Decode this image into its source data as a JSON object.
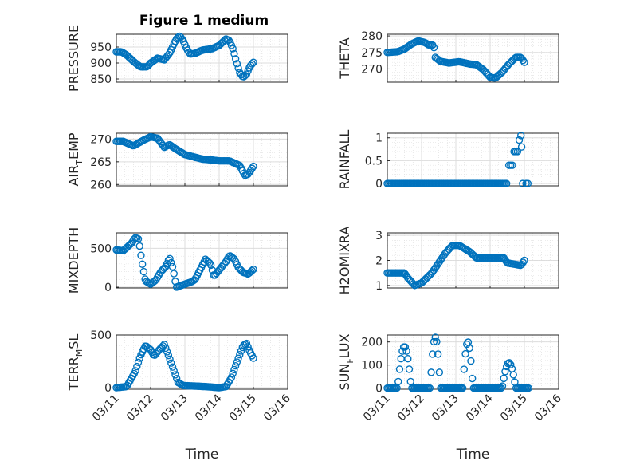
{
  "title": "Figure 1 medium",
  "x_axis_label": "Time",
  "x_tick_labels": [
    "03/11",
    "03/12",
    "03/13",
    "03/14",
    "03/15",
    "03/16"
  ],
  "marker_color": "#0072BD",
  "chart_data": [
    {
      "type": "scatter",
      "ylabel_main": "PRESSURE",
      "ylabel_sub": "",
      "ylim": [
        840,
        990
      ],
      "yticks": [
        850,
        900,
        950
      ],
      "xlim": [
        "03/11",
        "03/16"
      ],
      "grid": "on",
      "keypoints": [
        [
          0,
          935
        ],
        [
          0.15,
          935
        ],
        [
          0.3,
          925
        ],
        [
          0.5,
          905
        ],
        [
          0.7,
          888
        ],
        [
          0.9,
          888
        ],
        [
          1.0,
          900
        ],
        [
          1.2,
          915
        ],
        [
          1.4,
          910
        ],
        [
          1.55,
          930
        ],
        [
          1.75,
          975
        ],
        [
          1.85,
          985
        ],
        [
          1.95,
          970
        ],
        [
          2.05,
          945
        ],
        [
          2.15,
          928
        ],
        [
          2.3,
          930
        ],
        [
          2.5,
          940
        ],
        [
          2.8,
          945
        ],
        [
          3.0,
          955
        ],
        [
          3.2,
          975
        ],
        [
          3.3,
          970
        ],
        [
          3.4,
          945
        ],
        [
          3.5,
          905
        ],
        [
          3.6,
          870
        ],
        [
          3.7,
          855
        ],
        [
          3.8,
          865
        ],
        [
          3.9,
          890
        ],
        [
          4.0,
          902
        ]
      ]
    },
    {
      "type": "scatter",
      "ylabel_main": "THETA",
      "ylabel_sub": "",
      "ylim": [
        266,
        280.5
      ],
      "yticks": [
        270,
        275,
        280
      ],
      "xlim": [
        "03/11",
        "03/16"
      ],
      "grid": "on",
      "keypoints": [
        [
          0,
          275
        ],
        [
          0.3,
          275.2
        ],
        [
          0.5,
          276
        ],
        [
          0.7,
          277.5
        ],
        [
          0.9,
          278.5
        ],
        [
          1.1,
          278
        ],
        [
          1.2,
          277.3
        ],
        [
          1.35,
          277.2
        ],
        [
          1.4,
          273.5
        ],
        [
          1.55,
          272.3
        ],
        [
          1.8,
          271.8
        ],
        [
          2.1,
          272.2
        ],
        [
          2.4,
          271.5
        ],
        [
          2.6,
          271.3
        ],
        [
          2.8,
          269.8
        ],
        [
          3.0,
          267.5
        ],
        [
          3.15,
          267.2
        ],
        [
          3.35,
          269
        ],
        [
          3.55,
          271.5
        ],
        [
          3.75,
          273.5
        ],
        [
          3.9,
          273.5
        ],
        [
          4.0,
          272
        ]
      ]
    },
    {
      "type": "scatter",
      "ylabel_main": "AIR",
      "ylabel_sub": "T",
      "ylabel_tail": "EMP",
      "ylim": [
        259.7,
        271.3
      ],
      "yticks": [
        260,
        265,
        270
      ],
      "xlim": [
        "03/11",
        "03/16"
      ],
      "grid": "on",
      "keypoints": [
        [
          0,
          269.5
        ],
        [
          0.2,
          269.5
        ],
        [
          0.5,
          268.5
        ],
        [
          0.8,
          269.8
        ],
        [
          1.0,
          270.5
        ],
        [
          1.2,
          270.2
        ],
        [
          1.4,
          268.2
        ],
        [
          1.55,
          268.8
        ],
        [
          1.7,
          268
        ],
        [
          2.0,
          266.6
        ],
        [
          2.3,
          266
        ],
        [
          2.5,
          265.6
        ],
        [
          2.8,
          265.4
        ],
        [
          3.0,
          265.2
        ],
        [
          3.3,
          265.2
        ],
        [
          3.6,
          264.2
        ],
        [
          3.75,
          262
        ],
        [
          3.85,
          262.3
        ],
        [
          4.0,
          264
        ]
      ]
    },
    {
      "type": "scatter",
      "ylabel_main": "RAINFALL",
      "ylabel_sub": "",
      "ylim": [
        -0.05,
        1.1
      ],
      "yticks": [
        0,
        0.5,
        1
      ],
      "xlim": [
        "03/11",
        "03/16"
      ],
      "grid": "on",
      "keypoints": [
        [
          0,
          0
        ],
        [
          3.5,
          0
        ]
      ],
      "extra_points": [
        [
          3.55,
          0.4
        ],
        [
          3.6,
          0.4
        ],
        [
          3.65,
          0.4
        ],
        [
          3.7,
          0.7
        ],
        [
          3.75,
          0.7
        ],
        [
          3.8,
          0.7
        ],
        [
          3.85,
          0.95
        ],
        [
          3.9,
          1.05
        ],
        [
          3.92,
          0.8
        ],
        [
          3.95,
          0
        ],
        [
          4.05,
          0
        ],
        [
          4.1,
          0
        ]
      ]
    },
    {
      "type": "scatter",
      "ylabel_main": "MIXDEPTH",
      "ylabel_sub": "",
      "ylim": [
        -10,
        700
      ],
      "yticks": [
        0,
        500
      ],
      "xlim": [
        "03/11",
        "03/16"
      ],
      "grid": "on",
      "keypoints": [
        [
          0,
          480
        ],
        [
          0.2,
          470
        ],
        [
          0.45,
          570
        ],
        [
          0.55,
          640
        ],
        [
          0.65,
          620
        ],
        [
          0.75,
          320
        ],
        [
          0.85,
          80
        ],
        [
          1.0,
          40
        ],
        [
          1.15,
          90
        ],
        [
          1.3,
          200
        ],
        [
          1.45,
          270
        ],
        [
          1.55,
          380
        ],
        [
          1.65,
          250
        ],
        [
          1.75,
          0
        ],
        [
          2.0,
          40
        ],
        [
          2.2,
          70
        ],
        [
          2.3,
          100
        ],
        [
          2.45,
          230
        ],
        [
          2.6,
          360
        ],
        [
          2.75,
          300
        ],
        [
          2.85,
          140
        ],
        [
          3.0,
          220
        ],
        [
          3.2,
          330
        ],
        [
          3.3,
          410
        ],
        [
          3.45,
          360
        ],
        [
          3.55,
          260
        ],
        [
          3.7,
          190
        ],
        [
          3.85,
          170
        ],
        [
          4.0,
          230
        ]
      ]
    },
    {
      "type": "scatter",
      "ylabel_main": "H2OMIXRA",
      "ylabel_sub": "",
      "ylim": [
        0.9,
        3.1
      ],
      "yticks": [
        1,
        2,
        3
      ],
      "xlim": [
        "03/11",
        "03/16"
      ],
      "grid": "on",
      "keypoints": [
        [
          0,
          1.5
        ],
        [
          0.5,
          1.5
        ],
        [
          0.6,
          1.3
        ],
        [
          0.8,
          1.0
        ],
        [
          1.0,
          1.1
        ],
        [
          1.3,
          1.5
        ],
        [
          1.5,
          1.9
        ],
        [
          1.7,
          2.3
        ],
        [
          1.9,
          2.6
        ],
        [
          2.1,
          2.6
        ],
        [
          2.4,
          2.35
        ],
        [
          2.6,
          2.1
        ],
        [
          3.0,
          2.1
        ],
        [
          3.4,
          2.1
        ],
        [
          3.5,
          1.9
        ],
        [
          3.7,
          1.85
        ],
        [
          3.9,
          1.8
        ],
        [
          4.0,
          2.0
        ]
      ]
    },
    {
      "type": "scatter",
      "ylabel_main": "TERR",
      "ylabel_sub": "M",
      "ylabel_tail": "SL",
      "ylim": [
        -15,
        500
      ],
      "yticks": [
        0,
        500
      ],
      "xlim": [
        "03/11",
        "03/16"
      ],
      "grid": "on",
      "keypoints": [
        [
          0,
          0
        ],
        [
          0.3,
          10
        ],
        [
          0.55,
          150
        ],
        [
          0.7,
          300
        ],
        [
          0.85,
          400
        ],
        [
          1.0,
          360
        ],
        [
          1.1,
          300
        ],
        [
          1.25,
          360
        ],
        [
          1.4,
          410
        ],
        [
          1.55,
          280
        ],
        [
          1.7,
          140
        ],
        [
          1.8,
          50
        ],
        [
          1.95,
          20
        ],
        [
          2.3,
          15
        ],
        [
          2.6,
          10
        ],
        [
          3.0,
          0
        ],
        [
          3.2,
          10
        ],
        [
          3.35,
          90
        ],
        [
          3.55,
          270
        ],
        [
          3.7,
          400
        ],
        [
          3.8,
          420
        ],
        [
          3.9,
          340
        ],
        [
          4.0,
          280
        ]
      ]
    },
    {
      "type": "scatter",
      "ylabel_main": "SUN",
      "ylabel_sub": "F",
      "ylabel_tail": "LUX",
      "ylim": [
        -5,
        230
      ],
      "yticks": [
        0,
        100,
        200
      ],
      "xlim": [
        "03/11",
        "03/16"
      ],
      "grid": "on",
      "arches": [
        [
          0.3,
          0.7,
          180
        ],
        [
          1.25,
          1.55,
          220
        ],
        [
          2.2,
          2.5,
          200
        ],
        [
          3.35,
          3.75,
          110
        ]
      ],
      "arch_range": [
        0,
        4.15
      ]
    }
  ]
}
